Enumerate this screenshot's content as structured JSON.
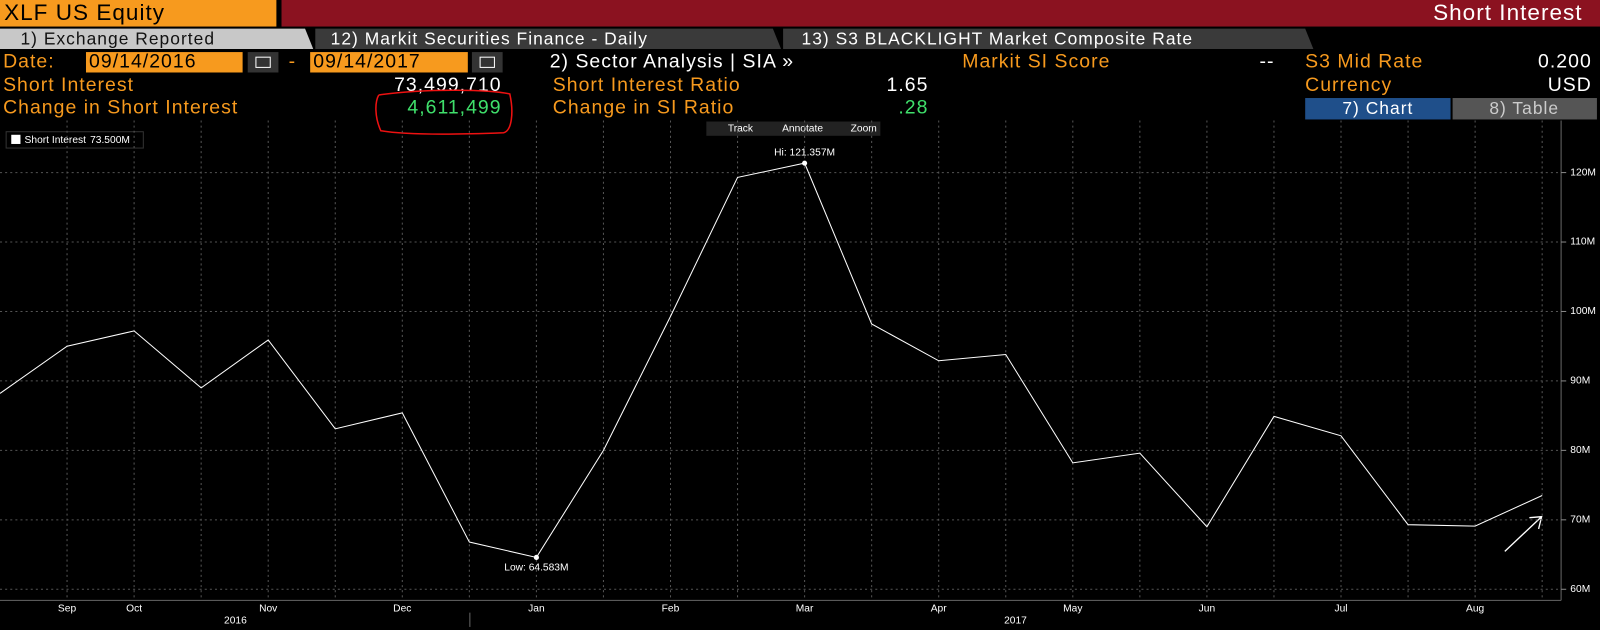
{
  "header": {
    "ticker": "XLF US Equity",
    "title": "Short Interest"
  },
  "tabs": [
    "1) Exchange Reported",
    "12) Markit Securities Finance - Daily",
    "13) S3 BLACKLIGHT Market Composite Rate"
  ],
  "fields": {
    "date_label": "Date:",
    "start_date": "09/14/2016",
    "dash": "-",
    "end_date": "09/14/2017",
    "sector_analysis": "2) Sector Analysis | SIA »",
    "markit_label": "Markit SI Score",
    "markit_value": "--",
    "s3_label": "S3 Mid Rate",
    "s3_value": "0.200",
    "si_label": "Short Interest",
    "si_value": "73,499,710",
    "sir_label": "Short Interest Ratio",
    "sir_value": "1.65",
    "currency_label": "Currency",
    "currency_value": "USD",
    "csi_label": "Change in Short Interest",
    "csi_value": "4,611,499",
    "csir_label": "Change in SI Ratio",
    "csir_value": ".28"
  },
  "buttons": [
    "7) Chart",
    "8) Table"
  ],
  "toolbar": [
    "Track",
    "Annotate",
    "Zoom"
  ],
  "chart_data": {
    "type": "line",
    "categories": [
      null,
      "Sep",
      "Oct",
      null,
      "Nov",
      null,
      "Dec",
      null,
      "Jan",
      null,
      "Feb",
      null,
      "Mar",
      null,
      "Apr",
      null,
      "May",
      null,
      "Jun",
      null,
      "Jul",
      null,
      "Aug",
      null
    ],
    "x_group_labels": [
      "2016",
      "2017"
    ],
    "series": [
      {
        "name": "Short Interest",
        "legend_value": "73.500M",
        "color": "#ffffff",
        "values": [
          88.2,
          95.0,
          97.2,
          89.0,
          95.9,
          83.1,
          85.4,
          66.8,
          64.583,
          80.0,
          99.3,
          119.3,
          121.357,
          98.2,
          92.9,
          93.8,
          78.2,
          79.6,
          69.0,
          84.9,
          82.1,
          69.3,
          69.1,
          73.5
        ]
      }
    ],
    "annotations": [
      "Hi: 121.357M",
      "Low: 64.583M"
    ],
    "ylim": [
      58.4,
      127.5
    ],
    "yticks": [
      {
        "value": 60,
        "label": "60M"
      },
      {
        "value": 70,
        "label": "70M"
      },
      {
        "value": 80,
        "label": "80M"
      },
      {
        "value": 90,
        "label": "90M"
      },
      {
        "value": 100,
        "label": "100M"
      },
      {
        "value": 110,
        "label": "110M"
      },
      {
        "value": 120,
        "label": "120M"
      }
    ],
    "grid": true
  }
}
